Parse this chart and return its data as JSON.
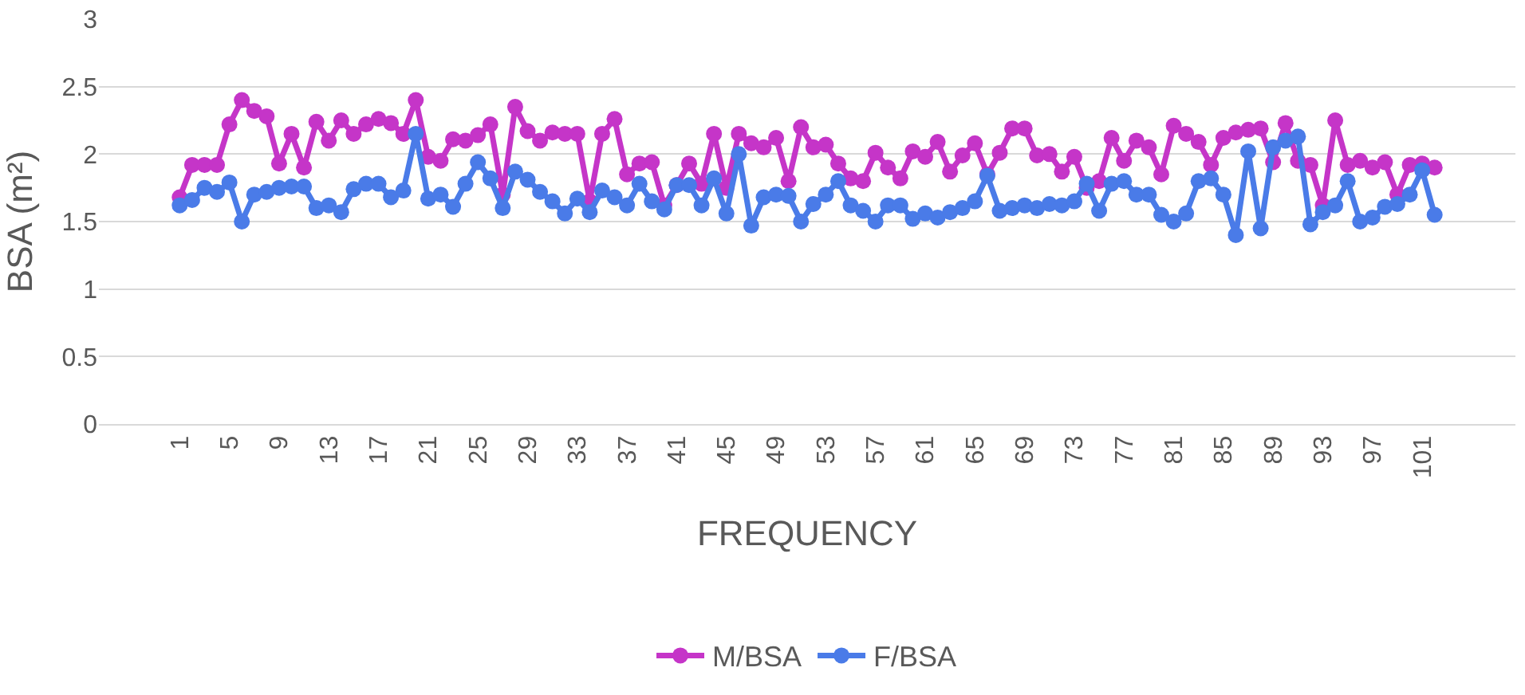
{
  "chart_data": {
    "type": "line",
    "xlabel": "FREQUENCY",
    "ylabel": "BSA (m²)",
    "categories": [
      "1",
      null,
      null,
      null,
      "5",
      null,
      null,
      null,
      "9",
      null,
      null,
      null,
      "13",
      null,
      null,
      null,
      "17",
      null,
      null,
      null,
      "21",
      null,
      null,
      null,
      "25",
      null,
      null,
      null,
      "29",
      null,
      null,
      null,
      "33",
      null,
      null,
      null,
      "37",
      null,
      null,
      null,
      "41",
      null,
      null,
      null,
      "45",
      null,
      null,
      null,
      "49",
      null,
      null,
      null,
      "53",
      null,
      null,
      null,
      "57",
      null,
      null,
      null,
      "61",
      null,
      null,
      null,
      "65",
      null,
      null,
      null,
      "69",
      null,
      null,
      null,
      "73",
      null,
      null,
      null,
      "77",
      null,
      null,
      null,
      "81",
      null,
      null,
      null,
      "85",
      null,
      null,
      null,
      "89",
      null,
      null,
      null,
      "93",
      null,
      null,
      null,
      "97",
      null,
      null,
      null,
      "101",
      null
    ],
    "series": [
      {
        "name": "M/BSA",
        "color": "#c535c8",
        "values": [
          1.68,
          1.92,
          1.92,
          1.92,
          2.22,
          2.4,
          2.32,
          2.28,
          1.93,
          2.15,
          1.9,
          2.24,
          2.1,
          2.25,
          2.15,
          2.22,
          2.26,
          2.23,
          2.15,
          2.4,
          1.98,
          1.95,
          2.11,
          2.1,
          2.14,
          2.22,
          1.7,
          2.35,
          2.17,
          2.1,
          2.16,
          2.15,
          2.15,
          1.65,
          2.15,
          2.26,
          1.85,
          1.93,
          1.94,
          1.62,
          1.77,
          1.93,
          1.78,
          2.15,
          1.75,
          2.15,
          2.08,
          2.05,
          2.12,
          1.8,
          2.2,
          2.05,
          2.07,
          1.93,
          1.82,
          1.8,
          2.01,
          1.9,
          1.82,
          2.02,
          1.98,
          2.09,
          1.87,
          1.99,
          2.08,
          1.85,
          2.01,
          2.19,
          2.19,
          1.99,
          2.0,
          1.87,
          1.98,
          1.75,
          1.8,
          2.12,
          1.95,
          2.1,
          2.05,
          1.85,
          2.21,
          2.15,
          2.09,
          1.92,
          2.12,
          2.16,
          2.18,
          2.19,
          1.94,
          2.23,
          1.95,
          1.92,
          1.62,
          2.25,
          1.92,
          1.95,
          1.9,
          1.94,
          1.7,
          1.92,
          1.93,
          1.9
        ]
      },
      {
        "name": "F/BSA",
        "color": "#4a7be8",
        "values": [
          1.62,
          1.66,
          1.75,
          1.72,
          1.79,
          1.5,
          1.7,
          1.72,
          1.75,
          1.76,
          1.76,
          1.6,
          1.62,
          1.57,
          1.74,
          1.78,
          1.78,
          1.68,
          1.73,
          2.15,
          1.67,
          1.7,
          1.61,
          1.78,
          1.94,
          1.82,
          1.6,
          1.87,
          1.81,
          1.72,
          1.65,
          1.56,
          1.67,
          1.57,
          1.73,
          1.68,
          1.62,
          1.78,
          1.65,
          1.59,
          1.77,
          1.77,
          1.62,
          1.82,
          1.56,
          2.0,
          1.47,
          1.68,
          1.7,
          1.69,
          1.5,
          1.63,
          1.7,
          1.8,
          1.62,
          1.58,
          1.5,
          1.62,
          1.62,
          1.52,
          1.56,
          1.53,
          1.57,
          1.6,
          1.65,
          1.84,
          1.58,
          1.6,
          1.62,
          1.6,
          1.63,
          1.62,
          1.65,
          1.78,
          1.58,
          1.78,
          1.8,
          1.7,
          1.7,
          1.55,
          1.5,
          1.56,
          1.8,
          1.82,
          1.7,
          1.4,
          2.02,
          1.45,
          2.05,
          2.1,
          2.13,
          1.48,
          1.57,
          1.62,
          1.8,
          1.5,
          1.53,
          1.61,
          1.63,
          1.7,
          1.88,
          1.55
        ]
      }
    ],
    "ylim": [
      0,
      3
    ],
    "yticks": [
      0,
      0.5,
      1,
      1.5,
      2,
      2.5,
      3
    ],
    "grid": "y",
    "legend": "bottom",
    "marker": "circle",
    "line_style": "solid"
  }
}
